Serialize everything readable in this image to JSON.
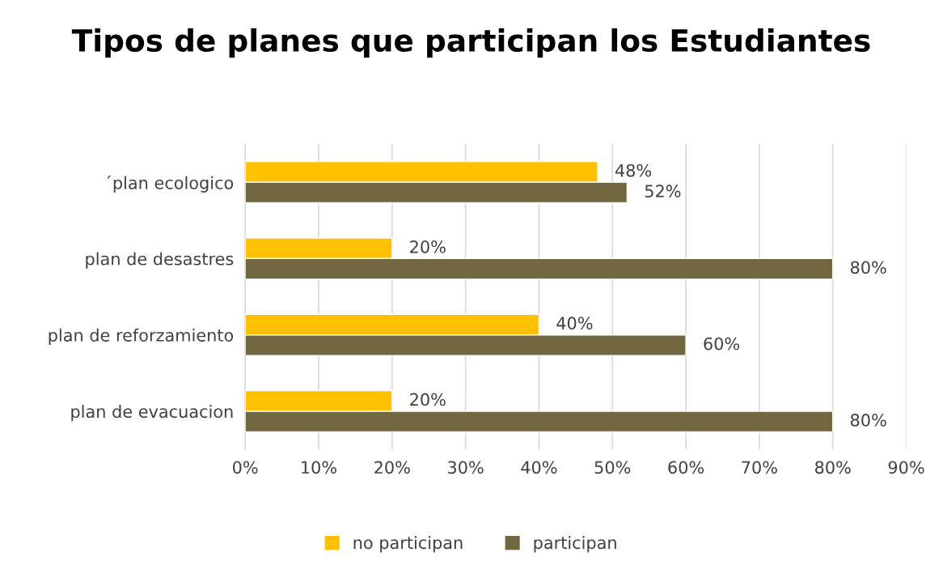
{
  "chart_data": {
    "type": "bar",
    "orientation": "horizontal",
    "title": "Tipos de planes que participan los Estudiantes",
    "categories": [
      "´plan ecologico",
      "plan de desastres",
      "plan de reforzamiento",
      "plan de evacuacion"
    ],
    "series": [
      {
        "name": "no participan",
        "color": "#ffc000",
        "values": [
          48,
          20,
          40,
          20
        ],
        "value_labels": [
          "48%",
          "20%",
          "40%",
          "20%"
        ]
      },
      {
        "name": "participan",
        "color": "#716841",
        "values": [
          52,
          80,
          60,
          80
        ],
        "value_labels": [
          "52%",
          "80%",
          "60%",
          "80%"
        ]
      }
    ],
    "xlim": [
      0,
      90
    ],
    "xticks": [
      {
        "value": 0,
        "label": "0%"
      },
      {
        "value": 10,
        "label": "10%"
      },
      {
        "value": 20,
        "label": "20%"
      },
      {
        "value": 30,
        "label": "30%"
      },
      {
        "value": 40,
        "label": "40%"
      },
      {
        "value": 50,
        "label": "50%"
      },
      {
        "value": 60,
        "label": "60%"
      },
      {
        "value": 70,
        "label": "70%"
      },
      {
        "value": 80,
        "label": "80%"
      },
      {
        "value": 90,
        "label": "90%"
      }
    ],
    "grid": "x",
    "legend": "bottom"
  }
}
